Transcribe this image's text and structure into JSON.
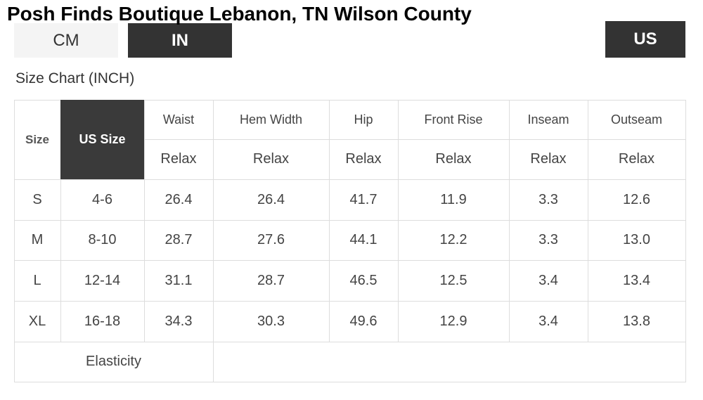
{
  "header": {
    "title": "Posh Finds Boutique Lebanon, TN Wilson County"
  },
  "unit_buttons": [
    "CM",
    "IN"
  ],
  "region_button": "US",
  "caption": "Size Chart (INCH)",
  "table": {
    "headers": [
      "Size",
      "US Size",
      "Waist",
      "Hem Width",
      "Hip",
      "Front Rise",
      "Inseam",
      "Outseam"
    ],
    "subheaders": [
      "Relax",
      "Relax",
      "Relax",
      "Relax",
      "Relax",
      "Relax"
    ],
    "rows": [
      [
        "S",
        "4-6",
        "26.4",
        "26.4",
        "41.7",
        "11.9",
        "3.3",
        "12.6"
      ],
      [
        "M",
        "8-10",
        "28.7",
        "27.6",
        "44.1",
        "12.2",
        "3.3",
        "13.0"
      ],
      [
        "L",
        "12-14",
        "31.1",
        "28.7",
        "46.5",
        "12.5",
        "3.4",
        "13.4"
      ],
      [
        "XL",
        "16-18",
        "34.3",
        "30.3",
        "49.6",
        "12.9",
        "3.4",
        "13.8"
      ]
    ],
    "footer": "Elasticity"
  }
}
